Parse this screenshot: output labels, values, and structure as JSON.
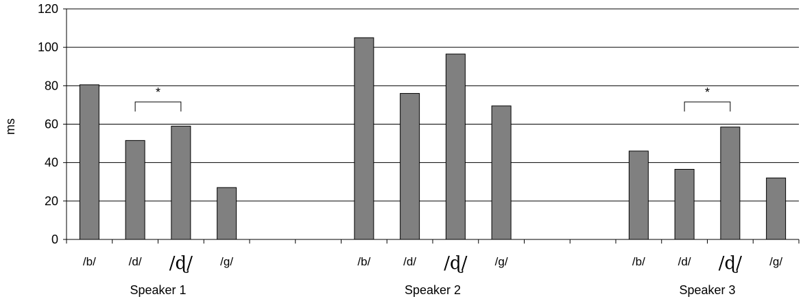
{
  "chart_data": {
    "type": "bar",
    "ylabel": "ms",
    "ylim": [
      0,
      120
    ],
    "yticks": [
      0,
      20,
      40,
      60,
      80,
      100,
      120
    ],
    "grid": true,
    "bar_color": "#808080",
    "groups": [
      {
        "name": "Speaker 1",
        "categories": [
          "/b/",
          "/d/",
          "/ɖ/",
          "/g/"
        ],
        "values": [
          80.5,
          51.5,
          59,
          27
        ],
        "significance": {
          "from": 1,
          "to": 2,
          "label": "*"
        }
      },
      {
        "name": "Speaker 2",
        "categories": [
          "/b/",
          "/d/",
          "/ɖ/",
          "/g/"
        ],
        "values": [
          105,
          76,
          96.5,
          69.5
        ],
        "significance": null
      },
      {
        "name": "Speaker 3",
        "categories": [
          "/b/",
          "/d/",
          "/ɖ/",
          "/g/"
        ],
        "values": [
          46,
          36.5,
          58.5,
          32
        ],
        "significance": {
          "from": 1,
          "to": 2,
          "label": "*"
        }
      }
    ]
  }
}
